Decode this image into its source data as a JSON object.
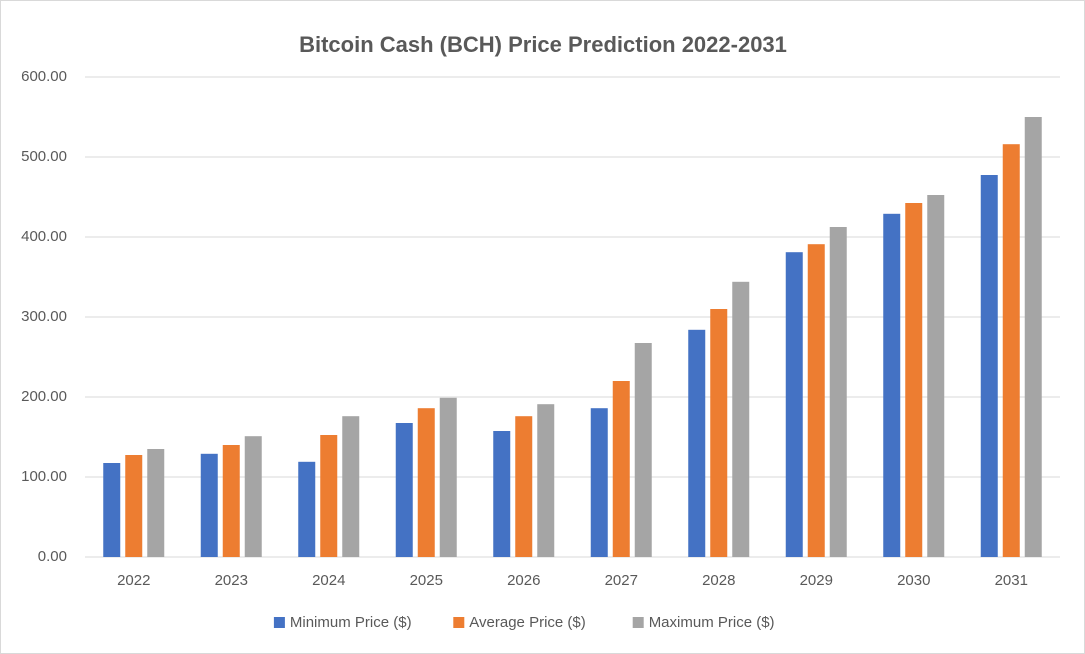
{
  "chart_data": {
    "type": "bar",
    "title": "Bitcoin Cash (BCH) Price Prediction 2022-2031",
    "categories": [
      "2022",
      "2023",
      "2024",
      "2025",
      "2026",
      "2027",
      "2028",
      "2029",
      "2030",
      "2031"
    ],
    "series": [
      {
        "name": "Minimum Price ($)",
        "color": "#4472c4",
        "values": [
          117.5,
          129,
          119,
          167.5,
          157.5,
          186,
          284,
          381,
          429,
          477.5
        ]
      },
      {
        "name": "Average Price ($)",
        "color": "#ed7d31",
        "values": [
          127.5,
          140,
          152.5,
          186,
          176,
          220,
          310,
          391,
          442.5,
          516
        ]
      },
      {
        "name": "Maximum Price ($)",
        "color": "#a5a5a5",
        "values": [
          135,
          151,
          176,
          199,
          191,
          267.5,
          344,
          412.5,
          452.5,
          550
        ]
      }
    ],
    "ylim": [
      0,
      600
    ],
    "yticks": [
      {
        "value": 0,
        "label": "0.00"
      },
      {
        "value": 100,
        "label": "100.00"
      },
      {
        "value": 200,
        "label": "200.00"
      },
      {
        "value": 300,
        "label": "300.00"
      },
      {
        "value": 400,
        "label": "400.00"
      },
      {
        "value": 500,
        "label": "500.00"
      },
      {
        "value": 600,
        "label": "600.00"
      }
    ],
    "grid": true,
    "legend": "bottom"
  }
}
